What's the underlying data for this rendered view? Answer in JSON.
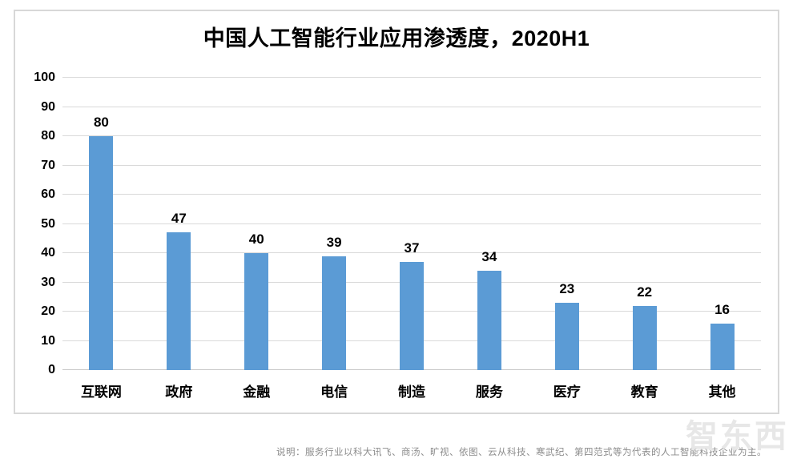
{
  "title": "中国人工智能行业应用渗透度，2020H1",
  "chart_data": {
    "type": "bar",
    "title": "中国人工智能行业应用渗透度，2020H1",
    "categories": [
      "互联网",
      "政府",
      "金融",
      "电信",
      "制造",
      "服务",
      "医疗",
      "教育",
      "其他"
    ],
    "values": [
      80,
      47,
      40,
      39,
      37,
      34,
      23,
      22,
      16
    ],
    "xlabel": "",
    "ylabel": "",
    "ylim": [
      0,
      100
    ],
    "ytick_step": 10,
    "grid": true,
    "legend": false,
    "bar_color": "#5B9BD5"
  },
  "footnote": "说明：服务行业以科大讯飞、商汤、旷视、依图、云从科技、寒武纪、第四范式等为代表的人工智能科技企业为主。",
  "watermark": "智东西",
  "colors": {
    "bar": "#5B9BD5",
    "grid": "#D9D9D9",
    "frame_border": "#D8D8D8",
    "footnote_text": "#8C8C8C",
    "watermark_text": "#E7E7E7",
    "label_text": "#000000"
  }
}
